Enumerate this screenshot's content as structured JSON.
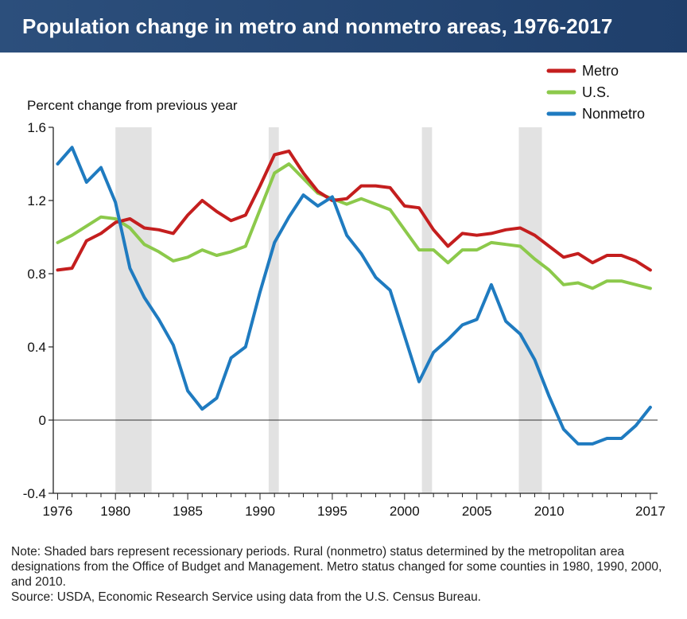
{
  "header": {
    "title": "Population change in metro and nonmetro areas, 1976-2017"
  },
  "colors": {
    "metro": "#c41e1e",
    "us": "#8cc94b",
    "nonmetro": "#1f7bc0",
    "recession": "#e2e2e2",
    "header_bg": "#1f3f6b"
  },
  "chart_data": {
    "type": "line",
    "title": "Population change in metro and nonmetro areas, 1976-2017",
    "ylabel": "Percent change from previous year",
    "xlabel": "",
    "xlim": [
      1975.7,
      2017.5
    ],
    "ylim": [
      -0.4,
      1.6
    ],
    "yticks": [
      -0.4,
      0,
      0.4,
      0.8,
      1.2,
      1.6
    ],
    "ytick_labels": [
      "-0.4",
      "0",
      "0.4",
      "0.8",
      "1.2",
      "1.6"
    ],
    "xticks": [
      1976,
      1980,
      1985,
      1990,
      1995,
      2000,
      2005,
      2010,
      2017
    ],
    "xtick_labels": [
      "1976",
      "1980",
      "1985",
      "1990",
      "1995",
      "2000",
      "2005",
      "2010",
      "2017"
    ],
    "grid": false,
    "legend_position": "top-right",
    "recessions": [
      [
        1980.0,
        1982.5
      ],
      [
        1990.6,
        1991.3
      ],
      [
        2001.2,
        2001.9
      ],
      [
        2007.9,
        2009.5
      ]
    ],
    "x": [
      1976,
      1977,
      1978,
      1979,
      1980,
      1981,
      1982,
      1983,
      1984,
      1985,
      1986,
      1987,
      1988,
      1989,
      1990,
      1991,
      1992,
      1993,
      1994,
      1995,
      1996,
      1997,
      1998,
      1999,
      2000,
      2001,
      2002,
      2003,
      2004,
      2005,
      2006,
      2007,
      2008,
      2009,
      2010,
      2011,
      2012,
      2013,
      2014,
      2015,
      2016,
      2017
    ],
    "series": [
      {
        "name": "Metro",
        "key": "metro",
        "values": [
          0.82,
          0.83,
          0.98,
          1.02,
          1.08,
          1.1,
          1.05,
          1.04,
          1.02,
          1.12,
          1.2,
          1.14,
          1.09,
          1.12,
          1.28,
          1.45,
          1.47,
          1.35,
          1.25,
          1.2,
          1.21,
          1.28,
          1.28,
          1.27,
          1.17,
          1.16,
          1.04,
          0.95,
          1.02,
          1.01,
          1.02,
          1.04,
          1.05,
          1.01,
          0.95,
          0.89,
          0.91,
          0.86,
          0.9,
          0.9,
          0.87,
          0.82
        ]
      },
      {
        "name": "U.S.",
        "key": "us",
        "values": [
          0.97,
          1.01,
          1.06,
          1.11,
          1.1,
          1.05,
          0.96,
          0.92,
          0.87,
          0.89,
          0.93,
          0.9,
          0.92,
          0.95,
          1.15,
          1.35,
          1.4,
          1.32,
          1.24,
          1.21,
          1.18,
          1.21,
          1.18,
          1.15,
          1.04,
          0.93,
          0.93,
          0.86,
          0.93,
          0.93,
          0.97,
          0.96,
          0.95,
          0.88,
          0.82,
          0.74,
          0.75,
          0.72,
          0.76,
          0.76,
          0.74,
          0.72
        ]
      },
      {
        "name": "Nonmetro",
        "key": "nonmetro",
        "values": [
          1.4,
          1.49,
          1.3,
          1.38,
          1.19,
          0.83,
          0.67,
          0.55,
          0.41,
          0.16,
          0.06,
          0.12,
          0.34,
          0.4,
          0.7,
          0.97,
          1.11,
          1.23,
          1.17,
          1.22,
          1.01,
          0.91,
          0.78,
          0.71,
          0.46,
          0.21,
          0.37,
          0.44,
          0.52,
          0.55,
          0.74,
          0.54,
          0.47,
          0.33,
          0.13,
          -0.05,
          -0.13,
          -0.13,
          -0.1,
          -0.1,
          -0.03,
          0.07
        ]
      }
    ]
  },
  "note": {
    "line1": "Note: Shaded bars represent recessionary periods. Rural (nonmetro) status determined by the metropolitan area designations from the Office of Budget and Management. Metro status changed for some counties in 1980, 1990, 2000, and 2010.",
    "line2": "Source: USDA, Economic Research Service using data from the U.S. Census Bureau."
  }
}
